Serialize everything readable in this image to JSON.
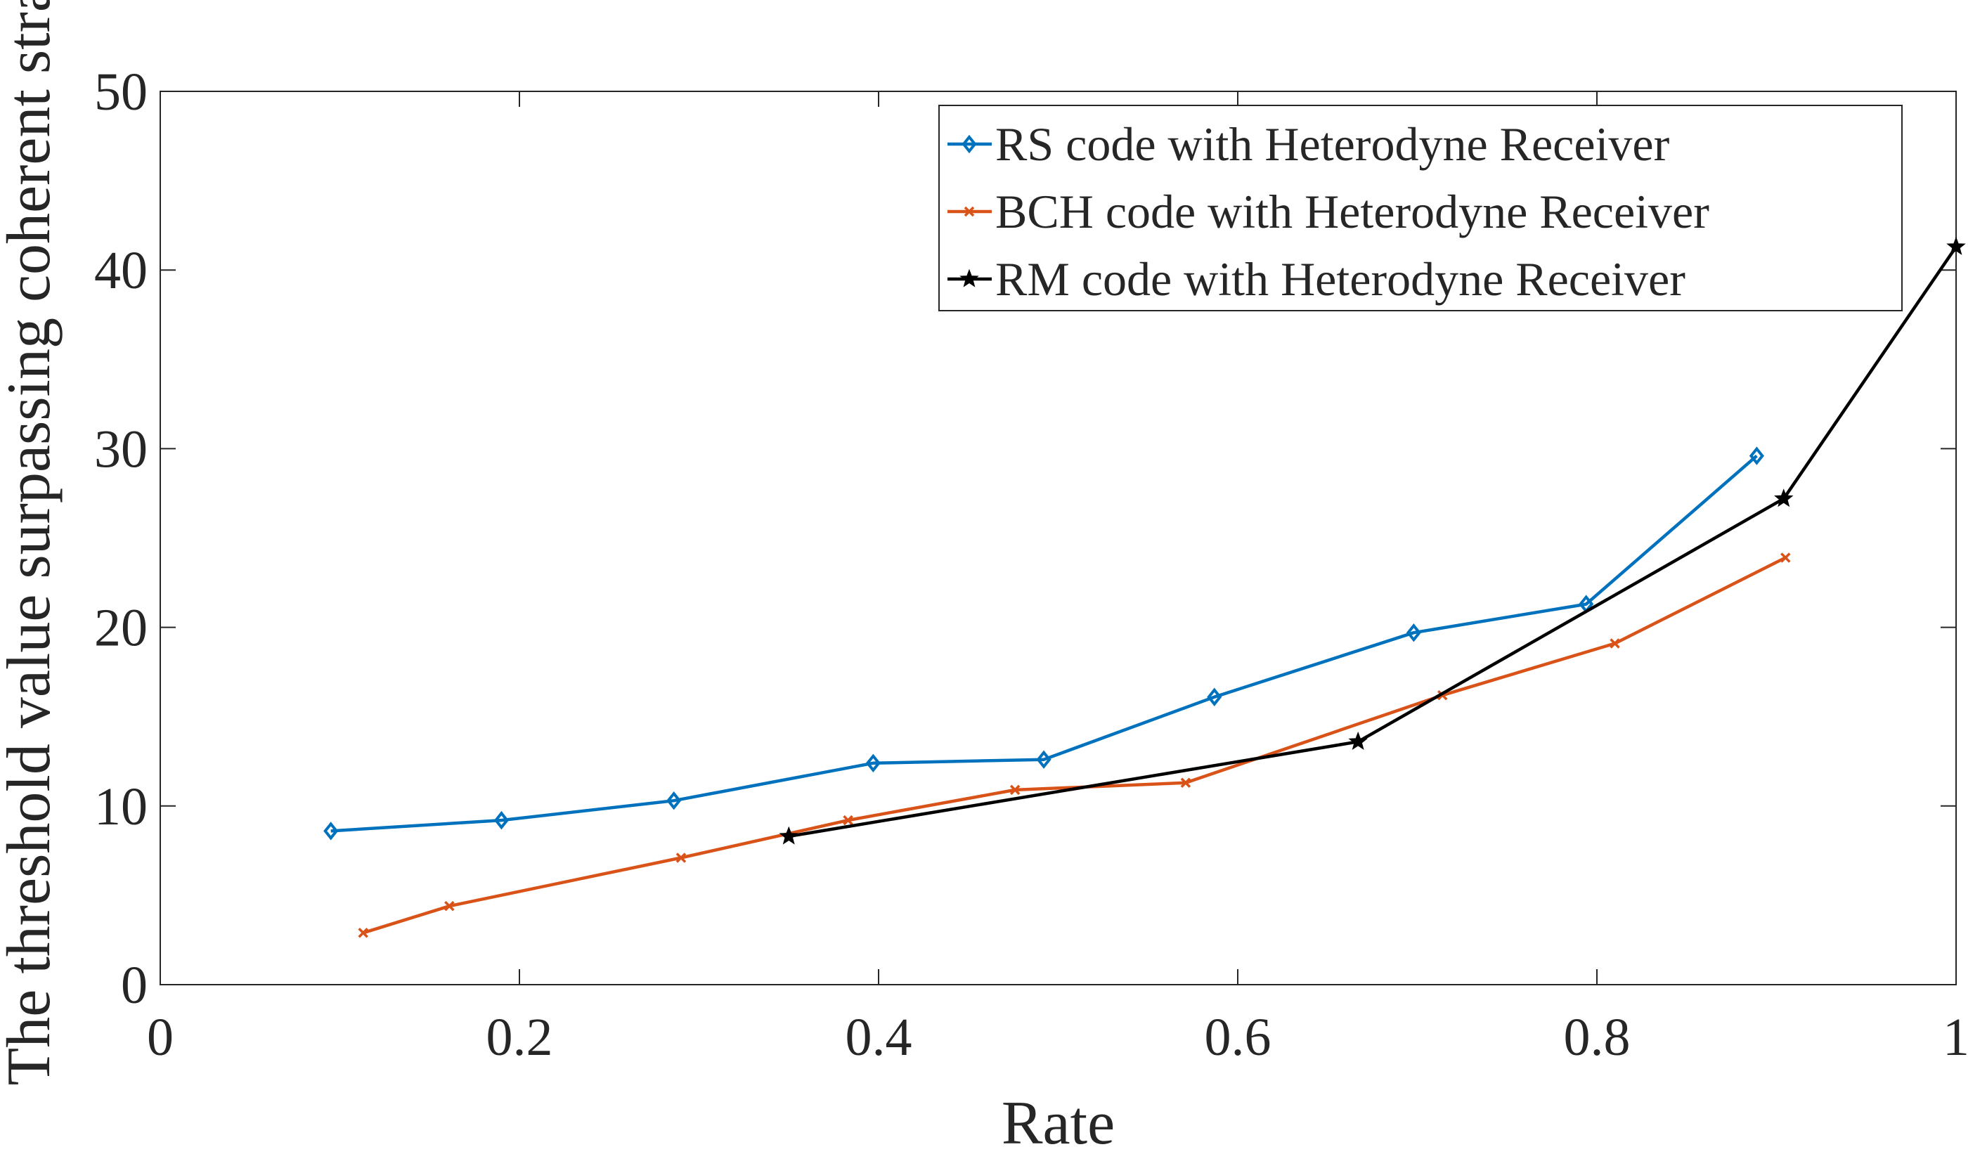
{
  "chart_data": {
    "type": "line",
    "title": "",
    "xlabel": "Rate",
    "ylabel": "The threshold value surpassing coherent strategy",
    "xlim": [
      0,
      1
    ],
    "ylim": [
      0,
      50
    ],
    "xticks": [
      0,
      0.2,
      0.4,
      0.6,
      0.8,
      1
    ],
    "yticks": [
      0,
      10,
      20,
      30,
      40,
      50
    ],
    "xtick_labels": [
      "0",
      "0.2",
      "0.4",
      "0.6",
      "0.8",
      "1"
    ],
    "ytick_labels": [
      "0",
      "10",
      "20",
      "30",
      "40",
      "50"
    ],
    "grid": false,
    "legend_position": "top-right",
    "series": [
      {
        "name": "RS code with Heterodyne Receiver",
        "color": "#0072BD",
        "marker": "diamond",
        "x": [
          0.095,
          0.19,
          0.286,
          0.397,
          0.492,
          0.587,
          0.698,
          0.794,
          0.889
        ],
        "y": [
          8.6,
          9.2,
          10.3,
          12.4,
          12.6,
          16.1,
          19.7,
          21.3,
          29.6
        ]
      },
      {
        "name": "BCH code with Heterodyne Receiver",
        "color": "#D95319",
        "marker": "x",
        "x": [
          0.113,
          0.161,
          0.29,
          0.383,
          0.476,
          0.571,
          0.714,
          0.81,
          0.905
        ],
        "y": [
          2.9,
          4.4,
          7.1,
          9.2,
          10.9,
          11.3,
          16.2,
          19.1,
          23.9
        ]
      },
      {
        "name": "RM code with Heterodyne Receiver",
        "color": "#000000",
        "marker": "pentagram",
        "x": [
          0.35,
          0.667,
          0.904,
          1.0
        ],
        "y": [
          8.3,
          13.6,
          27.2,
          41.3
        ]
      }
    ]
  }
}
